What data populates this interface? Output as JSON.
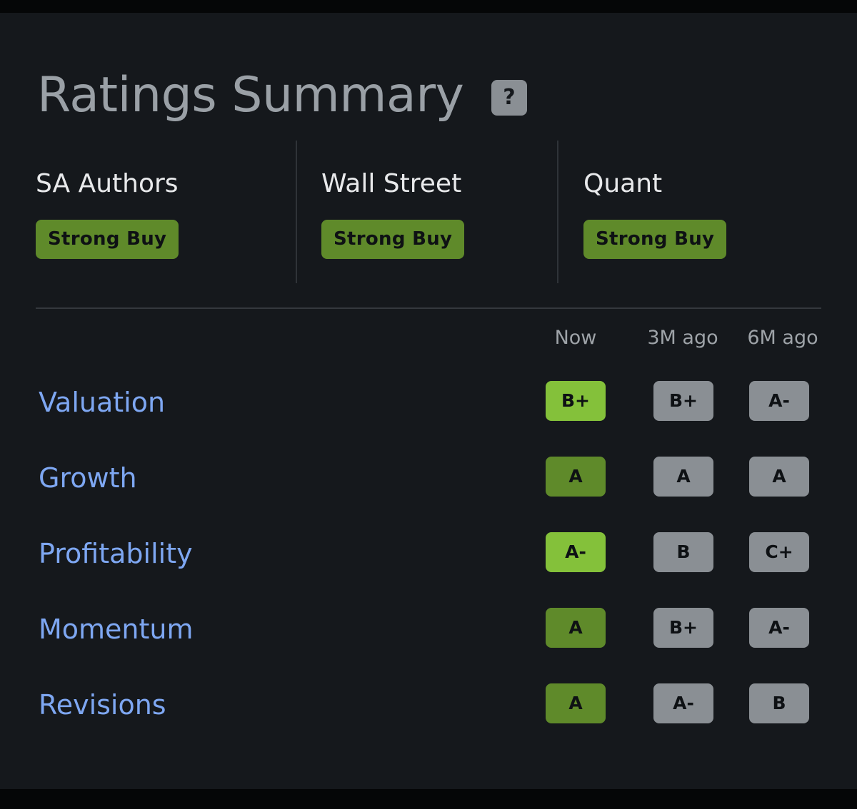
{
  "title": "Ratings Summary",
  "help_label": "?",
  "ratings": [
    {
      "label": "SA Authors",
      "value": "Strong Buy"
    },
    {
      "label": "Wall Street",
      "value": "Strong Buy"
    },
    {
      "label": "Quant",
      "value": "Strong Buy"
    }
  ],
  "columns": [
    "Now",
    "3M ago",
    "6M ago"
  ],
  "factors": [
    {
      "name": "Valuation",
      "grades": [
        "B+",
        "B+",
        "A-"
      ]
    },
    {
      "name": "Growth",
      "grades": [
        "A",
        "A",
        "A"
      ]
    },
    {
      "name": "Profitability",
      "grades": [
        "A-",
        "B",
        "C+"
      ]
    },
    {
      "name": "Momentum",
      "grades": [
        "A",
        "B+",
        "A-"
      ]
    },
    {
      "name": "Revisions",
      "grades": [
        "A",
        "A-",
        "B"
      ]
    }
  ],
  "colors": {
    "panel_bg": "#15181c",
    "rating_green": "#5f8a2a",
    "grade_bright_green": "#84c13a",
    "grade_gray": "#8a8f94",
    "factor_link": "#7ea7f2"
  }
}
